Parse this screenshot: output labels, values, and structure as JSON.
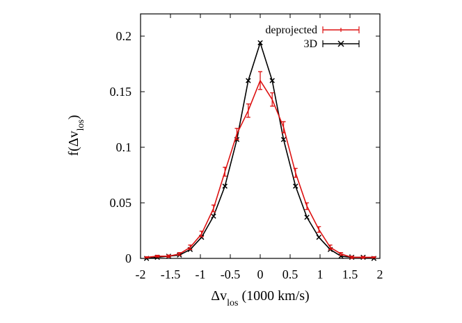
{
  "chart_data": {
    "type": "line",
    "title": "",
    "xlabel_main": "Δv",
    "xlabel_sub": "los",
    "xlabel_units": " (1000 km/s)",
    "ylabel_prefix": "f(Δv",
    "ylabel_sub": "los",
    "ylabel_suffix": ")",
    "xlim": [
      -2,
      2
    ],
    "ylim": [
      0,
      0.22
    ],
    "xticks": [
      {
        "value": -2,
        "label": "-2"
      },
      {
        "value": -1.5,
        "label": "-1.5"
      },
      {
        "value": -1,
        "label": "-1"
      },
      {
        "value": -0.5,
        "label": "-0.5"
      },
      {
        "value": 0,
        "label": "0"
      },
      {
        "value": 0.5,
        "label": "0.5"
      },
      {
        "value": 1,
        "label": "1"
      },
      {
        "value": 1.5,
        "label": "1.5"
      },
      {
        "value": 2,
        "label": "2"
      }
    ],
    "yticks": [
      {
        "value": 0,
        "label": "0"
      },
      {
        "value": 0.05,
        "label": "0.05"
      },
      {
        "value": 0.1,
        "label": "0.1"
      },
      {
        "value": 0.15,
        "label": "0.15"
      },
      {
        "value": 0.2,
        "label": "0.2"
      }
    ],
    "legend_position": "top-right",
    "series": [
      {
        "name": "deprojected",
        "color": "#dd1111",
        "marker": "errorbar",
        "x": [
          -1.9,
          -1.72,
          -1.53,
          -1.35,
          -1.17,
          -0.98,
          -0.78,
          -0.59,
          -0.39,
          -0.2,
          0,
          0.2,
          0.39,
          0.59,
          0.78,
          0.98,
          1.17,
          1.35,
          1.53,
          1.72,
          1.9
        ],
        "y": [
          0.001,
          0.002,
          0.002,
          0.004,
          0.01,
          0.022,
          0.045,
          0.078,
          0.112,
          0.133,
          0.16,
          0.143,
          0.118,
          0.077,
          0.047,
          0.026,
          0.01,
          0.004,
          0.001,
          0.001,
          0.001
        ],
        "yerr": [
          0.0005,
          0.0008,
          0.001,
          0.0012,
          0.002,
          0.0025,
          0.003,
          0.004,
          0.005,
          0.006,
          0.008,
          0.006,
          0.005,
          0.004,
          0.003,
          0.0025,
          0.002,
          0.0012,
          0.001,
          0.0008,
          0.0005
        ]
      },
      {
        "name": "3D",
        "color": "#000000",
        "marker": "x",
        "x": [
          -1.9,
          -1.72,
          -1.53,
          -1.35,
          -1.17,
          -0.98,
          -0.78,
          -0.59,
          -0.39,
          -0.2,
          0,
          0.2,
          0.39,
          0.59,
          0.78,
          0.98,
          1.17,
          1.35,
          1.53,
          1.72,
          1.9
        ],
        "y": [
          0,
          0.001,
          0.002,
          0.003,
          0.008,
          0.019,
          0.038,
          0.065,
          0.107,
          0.16,
          0.194,
          0.16,
          0.107,
          0.065,
          0.037,
          0.019,
          0.008,
          0.002,
          0.001,
          0.001,
          0
        ]
      }
    ]
  }
}
